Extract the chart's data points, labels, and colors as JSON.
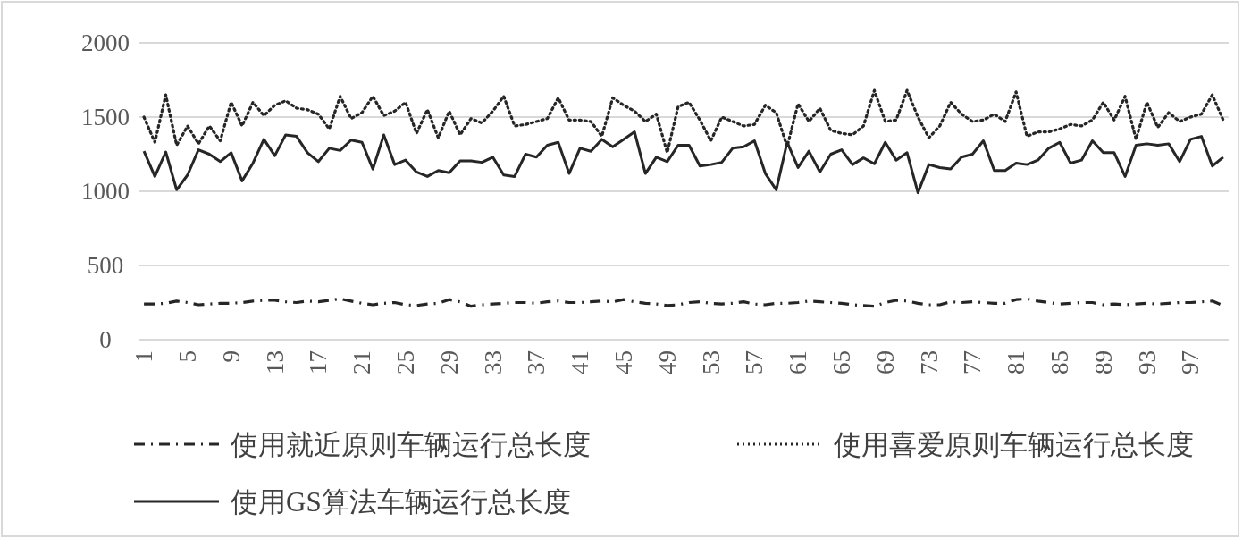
{
  "chart_data": {
    "type": "line",
    "categories": [
      "1",
      null,
      null,
      null,
      "5",
      null,
      null,
      null,
      "9",
      null,
      null,
      null,
      "13",
      null,
      null,
      null,
      "17",
      null,
      null,
      null,
      "21",
      null,
      null,
      null,
      "25",
      null,
      null,
      null,
      "29",
      null,
      null,
      null,
      "33",
      null,
      null,
      null,
      "37",
      null,
      null,
      null,
      "41",
      null,
      null,
      null,
      "45",
      null,
      null,
      null,
      "49",
      null,
      null,
      null,
      "53",
      null,
      null,
      null,
      "57",
      null,
      null,
      null,
      "61",
      null,
      null,
      null,
      "65",
      null,
      null,
      null,
      "69",
      null,
      null,
      null,
      "73",
      null,
      null,
      null,
      "77",
      null,
      null,
      null,
      "81",
      null,
      null,
      null,
      "85",
      null,
      null,
      null,
      "89",
      null,
      null,
      null,
      "93",
      null,
      null,
      null,
      "97",
      null,
      null,
      null
    ],
    "ylim": [
      0,
      2000
    ],
    "yticks": [
      0,
      500,
      1000,
      1500,
      2000
    ],
    "grid": "y",
    "legend": "bottom",
    "series": [
      {
        "name": "使用就近原则车辆运行总长度",
        "color": "#262626",
        "line_style": "dashdot",
        "values": [
          240,
          240,
          245,
          260,
          250,
          235,
          240,
          245,
          245,
          250,
          260,
          265,
          265,
          255,
          250,
          260,
          255,
          265,
          275,
          260,
          245,
          235,
          245,
          250,
          235,
          230,
          240,
          245,
          270,
          255,
          225,
          235,
          240,
          245,
          250,
          250,
          245,
          255,
          260,
          250,
          250,
          255,
          260,
          255,
          270,
          255,
          245,
          240,
          230,
          235,
          250,
          255,
          245,
          240,
          245,
          255,
          240,
          235,
          245,
          245,
          250,
          260,
          255,
          250,
          245,
          235,
          230,
          225,
          250,
          265,
          260,
          245,
          235,
          235,
          255,
          250,
          255,
          250,
          245,
          245,
          270,
          275,
          260,
          250,
          240,
          245,
          250,
          250,
          235,
          240,
          235,
          240,
          245,
          240,
          245,
          250,
          250,
          255,
          260,
          230
        ]
      },
      {
        "name": "使用喜爱原则车辆运行总长度",
        "color": "#262626",
        "line_style": "dotted",
        "values": [
          1500,
          1330,
          1650,
          1310,
          1440,
          1320,
          1440,
          1340,
          1600,
          1440,
          1600,
          1510,
          1580,
          1610,
          1560,
          1550,
          1520,
          1420,
          1640,
          1490,
          1530,
          1640,
          1510,
          1540,
          1600,
          1390,
          1550,
          1360,
          1540,
          1380,
          1490,
          1460,
          1540,
          1640,
          1440,
          1450,
          1470,
          1490,
          1630,
          1480,
          1480,
          1470,
          1370,
          1630,
          1580,
          1540,
          1470,
          1520,
          1260,
          1570,
          1600,
          1480,
          1340,
          1500,
          1470,
          1440,
          1450,
          1580,
          1530,
          1300,
          1590,
          1470,
          1560,
          1410,
          1390,
          1380,
          1440,
          1680,
          1470,
          1480,
          1680,
          1500,
          1360,
          1440,
          1600,
          1520,
          1470,
          1480,
          1520,
          1470,
          1670,
          1370,
          1400,
          1400,
          1420,
          1450,
          1440,
          1480,
          1600,
          1480,
          1640,
          1350,
          1600,
          1430,
          1530,
          1470,
          1500,
          1520,
          1650,
          1480
        ]
      },
      {
        "name": "使用GS算法车辆运行总长度",
        "color": "#262626",
        "line_style": "solid",
        "values": [
          1270,
          1100,
          1265,
          1010,
          1110,
          1280,
          1250,
          1200,
          1260,
          1070,
          1190,
          1350,
          1240,
          1380,
          1370,
          1260,
          1200,
          1290,
          1275,
          1345,
          1330,
          1150,
          1380,
          1180,
          1210,
          1130,
          1100,
          1140,
          1125,
          1205,
          1205,
          1195,
          1230,
          1110,
          1100,
          1250,
          1230,
          1310,
          1330,
          1120,
          1290,
          1270,
          1350,
          1300,
          1350,
          1400,
          1120,
          1230,
          1200,
          1310,
          1310,
          1170,
          1180,
          1195,
          1290,
          1300,
          1340,
          1120,
          1010,
          1330,
          1160,
          1270,
          1130,
          1250,
          1280,
          1180,
          1225,
          1185,
          1330,
          1210,
          1260,
          990,
          1180,
          1160,
          1150,
          1230,
          1250,
          1340,
          1140,
          1140,
          1190,
          1180,
          1210,
          1290,
          1330,
          1190,
          1210,
          1340,
          1260,
          1260,
          1100,
          1310,
          1320,
          1310,
          1320,
          1200,
          1350,
          1370,
          1170,
          1230
        ]
      }
    ]
  }
}
